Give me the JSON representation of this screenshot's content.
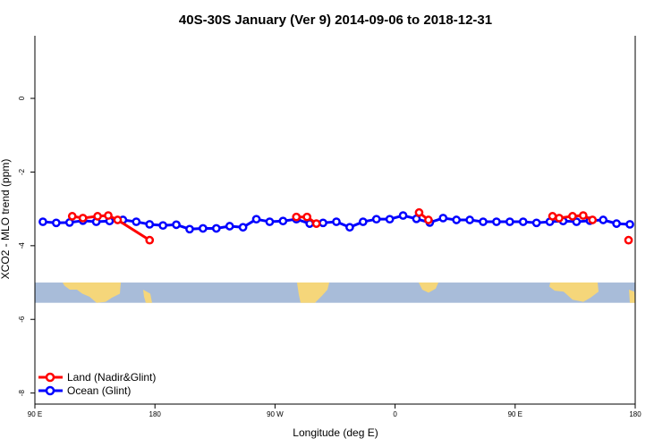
{
  "chart_data": {
    "type": "line",
    "title": "40S-30S January (Ver 9)   2014-09-06 to 2018-12-31",
    "xlabel": "Longitude (deg E)",
    "ylabel": "XCO2 - MLO trend (ppm)",
    "xlim": [
      90,
      540
    ],
    "ylim": [
      -8.3,
      1.7
    ],
    "x_ticks": [
      {
        "value": 90,
        "label": "90 E"
      },
      {
        "value": 180,
        "label": "180"
      },
      {
        "value": 270,
        "label": "90 W"
      },
      {
        "value": 360,
        "label": "0"
      },
      {
        "value": 450,
        "label": "90 E"
      },
      {
        "value": 540,
        "label": "180"
      }
    ],
    "y_ticks": [
      0,
      -2,
      -4,
      -6,
      -8
    ],
    "map_strip_ylim": [
      -5.55,
      -5.0
    ],
    "series": [
      {
        "name": "Land (Nadir&Glint)",
        "color": "#ff0000",
        "segments": [
          {
            "x": [
              118,
              126,
              137,
              145,
              152,
              176
            ],
            "y": [
              -3.2,
              -3.25,
              -3.2,
              -3.18,
              -3.3,
              -3.85
            ]
          },
          {
            "x": [
              286,
              294,
              301
            ],
            "y": [
              -3.22,
              -3.22,
              -3.4
            ]
          },
          {
            "x": [
              378,
              385
            ],
            "y": [
              -3.1,
              -3.3
            ]
          },
          {
            "x": [
              478,
              483,
              493,
              501,
              508
            ],
            "y": [
              -3.2,
              -3.25,
              -3.2,
              -3.18,
              -3.3
            ]
          },
          {
            "x": [
              535
            ],
            "y": [
              -3.85
            ]
          }
        ]
      },
      {
        "name": "Ocean (Glint)",
        "color": "#0000ff",
        "segments": [
          {
            "x": [
              96,
              106,
              116,
              126,
              136,
              146,
              156,
              166,
              176,
              186,
              196,
              206,
              216,
              226,
              236,
              246,
              256,
              266,
              276,
              286,
              296,
              306,
              316,
              326,
              336,
              346,
              356,
              366,
              376,
              386,
              396,
              406,
              416,
              426,
              436,
              446,
              456,
              466,
              476,
              486,
              496,
              506,
              516,
              526,
              536
            ],
            "y": [
              -3.35,
              -3.38,
              -3.37,
              -3.32,
              -3.35,
              -3.33,
              -3.3,
              -3.35,
              -3.42,
              -3.45,
              -3.43,
              -3.55,
              -3.53,
              -3.53,
              -3.47,
              -3.5,
              -3.28,
              -3.35,
              -3.33,
              -3.28,
              -3.4,
              -3.38,
              -3.35,
              -3.5,
              -3.35,
              -3.28,
              -3.28,
              -3.18,
              -3.27,
              -3.37,
              -3.25,
              -3.3,
              -3.3,
              -3.35,
              -3.35,
              -3.35,
              -3.35,
              -3.38,
              -3.35,
              -3.33,
              -3.35,
              -3.32,
              -3.3,
              -3.4,
              -3.42
            ]
          }
        ]
      }
    ],
    "legend": {
      "position": "bottom-left"
    }
  }
}
